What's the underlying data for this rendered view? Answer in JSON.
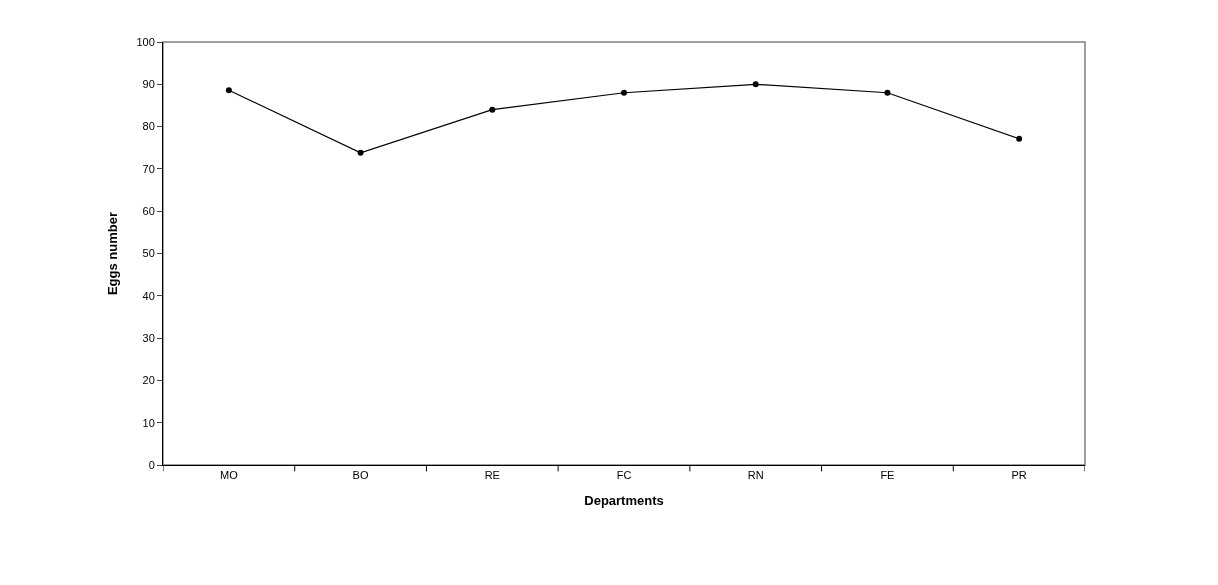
{
  "chart_data": {
    "type": "line",
    "xlabel": "Departments",
    "ylabel": "Eggs number",
    "categories": [
      "MO",
      "BO",
      "RE",
      "FC",
      "RN",
      "FE",
      "PR"
    ],
    "series": [
      {
        "color": "#000000",
        "values": [
          88.6,
          73.8,
          84.0,
          88.0,
          90.0,
          88.0,
          77.1
        ]
      }
    ],
    "ylim": [
      0,
      100
    ],
    "yticks": [
      0,
      10,
      20,
      30,
      40,
      50,
      60,
      70,
      80,
      90,
      100
    ],
    "marker": "circle",
    "line_style": "solid",
    "grid": false
  }
}
